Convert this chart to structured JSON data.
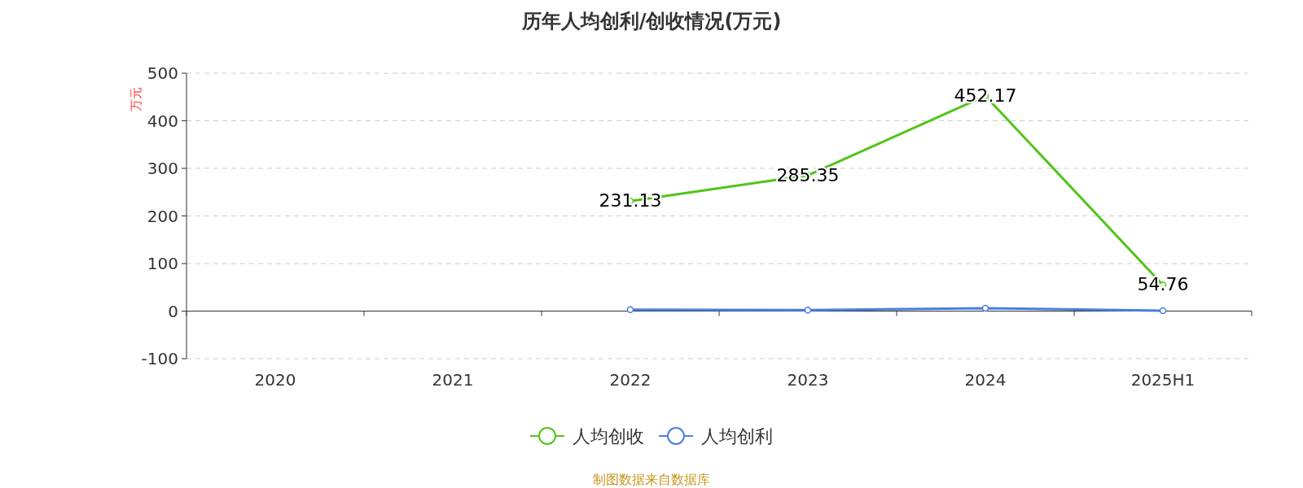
{
  "chart_data": {
    "type": "line",
    "title": "历年人均创利/创收情况(万元)",
    "ylabel": "万元",
    "categories": [
      "2020",
      "2021",
      "2022",
      "2023",
      "2024",
      "2025H1"
    ],
    "series": [
      {
        "name": "人均创收",
        "color": "#52c41a",
        "values": [
          null,
          null,
          231.13,
          285.35,
          452.17,
          54.76
        ],
        "value_labels": [
          null,
          null,
          "231.13",
          "285.35",
          "452.17",
          "54.76"
        ]
      },
      {
        "name": "人均创利",
        "color": "#4a7ee0",
        "values": [
          null,
          null,
          3,
          2,
          6,
          1
        ]
      }
    ],
    "ylim": [
      -100,
      500
    ],
    "yticks": [
      -100,
      0,
      100,
      200,
      300,
      400,
      500
    ],
    "grid": "y",
    "legend": "bottom",
    "marker": "circle",
    "line_style": "solid",
    "annotations": [
      "制图数据来自数据库"
    ]
  }
}
